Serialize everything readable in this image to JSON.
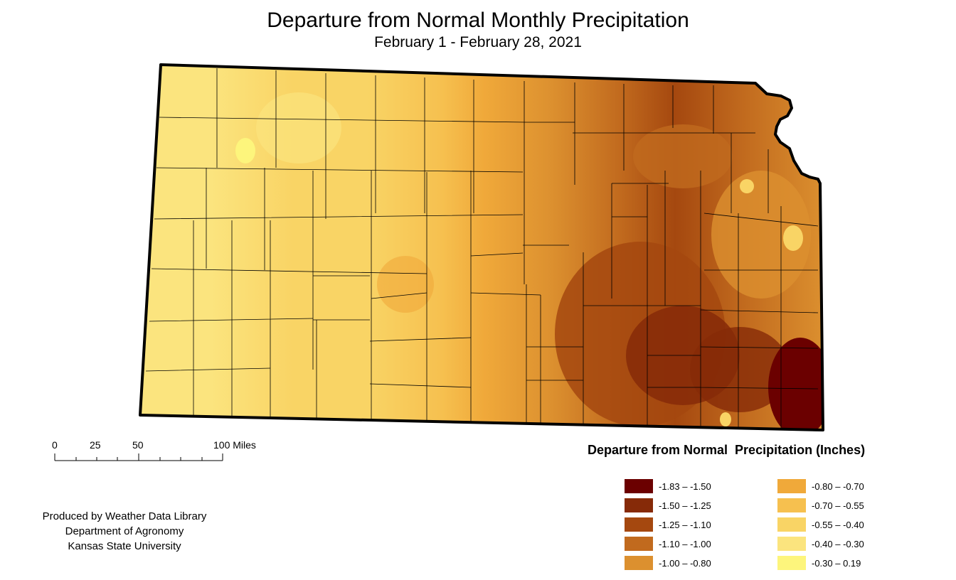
{
  "title": "Departure from Normal Monthly Precipitation",
  "subtitle": "February 1 - February 28, 2021",
  "legend": {
    "title": "Departure from Normal  Precipitation (Inches)",
    "items": [
      {
        "label": "-1.83 – -1.50",
        "color": "#6b0000"
      },
      {
        "label": "-1.50 – -1.25",
        "color": "#862a08"
      },
      {
        "label": "-1.25 – -1.10",
        "color": "#a5480f"
      },
      {
        "label": "-1.10 – -1.00",
        "color": "#c16a1e"
      },
      {
        "label": "-1.00 – -0.80",
        "color": "#dc902f"
      },
      {
        "label": "-0.80 – -0.70",
        "color": "#f0a93a"
      },
      {
        "label": "-0.70 – -0.55",
        "color": "#f6c04f"
      },
      {
        "label": "-0.55 – -0.40",
        "color": "#f9d465"
      },
      {
        "label": "-0.40 – -0.30",
        "color": "#fbe47e"
      },
      {
        "label": "-0.30 – 0.19",
        "color": "#fdf57c"
      }
    ]
  },
  "scale_bar": {
    "labels": [
      "0",
      "25",
      "50",
      "100 Miles"
    ]
  },
  "credits": [
    "Produced by Weather Data Library",
    "Department of Agronomy",
    "Kansas State University"
  ]
}
